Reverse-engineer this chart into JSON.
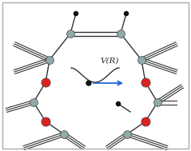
{
  "title": "V(R)",
  "bg_color": "#ffffff",
  "border_color": "#aaaaaa",
  "atom_gray": "#8faaaa",
  "atom_red": "#dd2222",
  "atom_black": "#111111",
  "well_color": "#333333",
  "arrow_color": "#2266dd",
  "fig_width": 2.39,
  "fig_height": 1.89
}
